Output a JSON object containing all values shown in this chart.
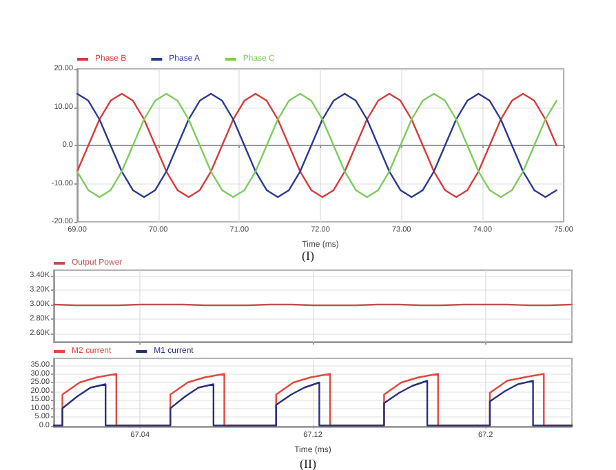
{
  "chart_data": [
    {
      "type": "line",
      "xlabel": "Time (ms)",
      "annotations": [
        "(I)"
      ],
      "grid": true,
      "legend": "top left",
      "marker": "none",
      "xlim": [
        69,
        75
      ],
      "xticks": [
        {
          "value": 69,
          "label": "69.00"
        },
        {
          "value": 70,
          "label": "70.00"
        },
        {
          "value": 71,
          "label": "71.00"
        },
        {
          "value": 72,
          "label": "72.00"
        },
        {
          "value": 73,
          "label": "73.00"
        },
        {
          "value": 74,
          "label": "74.00"
        },
        {
          "value": 75,
          "label": "75.00"
        }
      ],
      "ylim": [
        -20,
        20
      ],
      "yticks": [
        {
          "value": -20,
          "label": "-20.00"
        },
        {
          "value": -10,
          "label": "-10.00"
        },
        {
          "value": 0,
          "label": "0.0"
        },
        {
          "value": 10,
          "label": "10.00"
        },
        {
          "value": 20,
          "label": "20.00"
        }
      ],
      "x": [
        69,
        69.1375,
        69.275,
        69.4125,
        69.55,
        69.6875,
        69.825,
        69.9625,
        70.1,
        70.2375,
        70.375,
        70.5125,
        70.65,
        70.7875,
        70.925,
        71.0625,
        71.2,
        71.3375,
        71.475,
        71.6125,
        71.75,
        71.8875,
        72.025,
        72.1625,
        72.3,
        72.4375,
        72.575,
        72.7125,
        72.85,
        72.9875,
        73.125,
        73.2625,
        73.4,
        73.5375,
        73.675,
        73.8125,
        73.95,
        74.0875,
        74.225,
        74.3625,
        74.5,
        74.6375,
        74.775,
        74.9125
      ],
      "series": [
        {
          "name": "Phase B",
          "color": "#d63a3a",
          "values": [
            -6.8,
            0,
            6.8,
            11.7,
            13.5,
            11.7,
            6.8,
            0,
            -6.8,
            -11.7,
            -13.5,
            -11.7,
            -6.8,
            0,
            6.8,
            11.7,
            13.5,
            11.7,
            6.8,
            0,
            -6.8,
            -11.7,
            -13.5,
            -11.7,
            -6.8,
            0,
            6.8,
            11.7,
            13.5,
            11.7,
            6.8,
            0,
            -6.8,
            -11.7,
            -13.5,
            -11.7,
            -6.8,
            0,
            6.8,
            11.7,
            13.5,
            11.7,
            6.8,
            0
          ]
        },
        {
          "name": "Phase A",
          "color": "#2b3990",
          "values": [
            13.5,
            11.7,
            6.8,
            0,
            -6.8,
            -11.7,
            -13.5,
            -11.7,
            -6.8,
            0,
            6.8,
            11.7,
            13.5,
            11.7,
            6.8,
            0,
            -6.8,
            -11.7,
            -13.5,
            -11.7,
            -6.8,
            0,
            6.8,
            11.7,
            13.5,
            11.7,
            6.8,
            0,
            -6.8,
            -11.7,
            -13.5,
            -11.7,
            -6.8,
            0,
            6.8,
            11.7,
            13.5,
            11.7,
            6.8,
            0,
            -6.8,
            -11.7,
            -13.5,
            -11.7
          ]
        },
        {
          "name": "Phase C",
          "color": "#7ccc5c",
          "values": [
            -6.8,
            -11.7,
            -13.5,
            -11.7,
            -6.8,
            0,
            6.8,
            11.7,
            13.5,
            11.7,
            6.8,
            0,
            -6.8,
            -11.7,
            -13.5,
            -11.7,
            -6.8,
            0,
            6.8,
            11.7,
            13.5,
            11.7,
            6.8,
            0,
            -6.8,
            -11.7,
            -13.5,
            -11.7,
            -6.8,
            0,
            6.8,
            11.7,
            13.5,
            11.7,
            6.8,
            0,
            -6.8,
            -11.7,
            -13.5,
            -11.7,
            -6.8,
            0,
            6.8,
            11.7
          ]
        }
      ]
    },
    {
      "type": "line",
      "grid": true,
      "legend": "top left",
      "marker": "none",
      "tick_labels": "y",
      "xlim": [
        67.0,
        67.24
      ],
      "xticks": [
        67.04,
        67.12,
        67.2
      ],
      "ylim": [
        2480,
        3480
      ],
      "yticks": [
        {
          "value": 2600,
          "label": "2.60K"
        },
        {
          "value": 2800,
          "label": "2.80K"
        },
        {
          "value": 3000,
          "label": "3.00K"
        },
        {
          "value": 3200,
          "label": "3.20K"
        },
        {
          "value": 3400,
          "label": "3.40K"
        }
      ],
      "x": [
        67.0,
        67.01,
        67.02,
        67.03,
        67.04,
        67.05,
        67.06,
        67.07,
        67.08,
        67.09,
        67.1,
        67.11,
        67.12,
        67.13,
        67.14,
        67.15,
        67.16,
        67.17,
        67.18,
        67.19,
        67.2,
        67.21,
        67.22,
        67.23,
        67.24
      ],
      "series": [
        {
          "name": "Output Power",
          "color": "#c0504d",
          "values": [
            3000,
            2990,
            2990,
            2990,
            3000,
            3000,
            3000,
            2990,
            2990,
            2990,
            3000,
            3000,
            2990,
            2990,
            2990,
            3000,
            3000,
            2990,
            2990,
            3000,
            3000,
            3000,
            2990,
            2990,
            3000
          ]
        }
      ]
    },
    {
      "type": "line",
      "xlabel": "Time (ms)",
      "annotations": [
        "(II)"
      ],
      "grid": true,
      "legend": "top left",
      "marker": "none",
      "xlim": [
        67.0,
        67.24
      ],
      "xticks": [
        67.04,
        67.12,
        67.2
      ],
      "ylim": [
        -1,
        39
      ],
      "yticks": [
        {
          "value": 0,
          "label": "0.0"
        },
        {
          "value": 5,
          "label": "5.00"
        },
        {
          "value": 10,
          "label": "10.00"
        },
        {
          "value": 15,
          "label": "15.00"
        },
        {
          "value": 20,
          "label": "20.00"
        },
        {
          "value": 25,
          "label": "25.00"
        },
        {
          "value": 30,
          "label": "30.00"
        },
        {
          "value": 35,
          "label": "35.00"
        }
      ],
      "series": [
        {
          "name": "M2 current",
          "color": "#e0483c",
          "x": [
            67.0,
            67.004,
            67.004,
            67.012,
            67.02,
            67.029,
            67.029,
            67.054,
            67.054,
            67.062,
            67.07,
            67.079,
            67.079,
            67.103,
            67.103,
            67.111,
            67.119,
            67.128,
            67.128,
            67.153,
            67.153,
            67.161,
            67.169,
            67.178,
            67.178,
            67.202,
            67.202,
            67.21,
            67.218,
            67.227,
            67.227,
            67.24
          ],
          "values": [
            0,
            0,
            18,
            25,
            28,
            30,
            0,
            0,
            18,
            25,
            28,
            30,
            0,
            0,
            18,
            25,
            28,
            30,
            0,
            0,
            18,
            25,
            28,
            30,
            0,
            0,
            19,
            26,
            28,
            30,
            0,
            0
          ]
        },
        {
          "name": "M1 current",
          "color": "#2a2f7a",
          "x": [
            67.0,
            67.004,
            67.004,
            67.011,
            67.017,
            67.024,
            67.024,
            67.054,
            67.054,
            67.061,
            67.067,
            67.074,
            67.074,
            67.103,
            67.103,
            67.11,
            67.116,
            67.123,
            67.123,
            67.153,
            67.153,
            67.16,
            67.166,
            67.173,
            67.173,
            67.202,
            67.202,
            67.209,
            67.215,
            67.222,
            67.222,
            67.24
          ],
          "values": [
            0,
            0,
            10,
            17,
            22,
            24,
            0,
            0,
            10,
            17,
            22,
            24,
            0,
            0,
            12,
            18,
            22,
            25,
            0,
            0,
            13,
            19,
            23,
            26,
            0,
            0,
            14,
            20,
            24,
            26,
            0,
            0
          ]
        }
      ]
    }
  ]
}
